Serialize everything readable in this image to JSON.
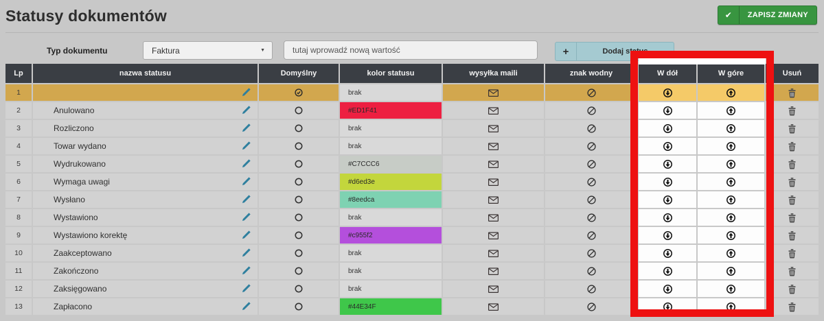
{
  "page": {
    "title": "Statusy dokumentów"
  },
  "toolbar": {
    "save_label": "ZAPISZ ZMIANY",
    "save_icon": "check-icon",
    "save_color": "#389540"
  },
  "filters": {
    "type_label": "Typ dokumentu",
    "type_value": "Faktura",
    "new_value_placeholder": "tutaj wprowadź nową wartość",
    "add_label": "Dodaj status",
    "add_icon": "plus-icon",
    "add_button_color": "#a5cad1"
  },
  "table": {
    "headers": [
      "Lp",
      "nazwa statusu",
      "Domyślny",
      "kolor statusu",
      "wysyłka maili",
      "znak wodny",
      "W dół",
      "W góre",
      "Usuń"
    ],
    "rows": [
      {
        "lp": "1",
        "name": "",
        "default": true,
        "color_label": "brak",
        "color_bg": null,
        "selected": true
      },
      {
        "lp": "2",
        "name": "Anulowano",
        "default": false,
        "color_label": "#ED1F41",
        "color_bg": "#ED1F41",
        "selected": false
      },
      {
        "lp": "3",
        "name": "Rozliczono",
        "default": false,
        "color_label": "brak",
        "color_bg": null,
        "selected": false
      },
      {
        "lp": "4",
        "name": "Towar wydano",
        "default": false,
        "color_label": "brak",
        "color_bg": null,
        "selected": false
      },
      {
        "lp": "5",
        "name": "Wydrukowano",
        "default": false,
        "color_label": "#C7CCC6",
        "color_bg": "#C7CCC6",
        "selected": false
      },
      {
        "lp": "6",
        "name": "Wymaga uwagi",
        "default": false,
        "color_label": "#d6ed3e",
        "color_bg": "#c3d63c",
        "selected": false
      },
      {
        "lp": "7",
        "name": "Wysłano",
        "default": false,
        "color_label": "#8eedca",
        "color_bg": "#7ed2b2",
        "selected": false
      },
      {
        "lp": "8",
        "name": "Wystawiono",
        "default": false,
        "color_label": "brak",
        "color_bg": null,
        "selected": false
      },
      {
        "lp": "9",
        "name": "Wystawiono korektę",
        "default": false,
        "color_label": "#c955f2",
        "color_bg": "#b44fdc",
        "selected": false
      },
      {
        "lp": "10",
        "name": "Zaakceptowano",
        "default": false,
        "color_label": "brak",
        "color_bg": null,
        "selected": false
      },
      {
        "lp": "11",
        "name": "Zakończono",
        "default": false,
        "color_label": "brak",
        "color_bg": null,
        "selected": false
      },
      {
        "lp": "12",
        "name": "Zaksięgowano",
        "default": false,
        "color_label": "brak",
        "color_bg": null,
        "selected": false
      },
      {
        "lp": "13",
        "name": "Zapłacono",
        "default": false,
        "color_label": "#44E34F",
        "color_bg": "#3fc74a",
        "selected": false
      }
    ],
    "selected_row_color": "#d2a74e",
    "selected_row_highlight_color": "#f5ca68",
    "header_bg_color": "#3a3e44"
  },
  "annotation": {
    "highlight_color": "#ee1111",
    "highlighted_columns": [
      "W dół",
      "W góre"
    ]
  }
}
